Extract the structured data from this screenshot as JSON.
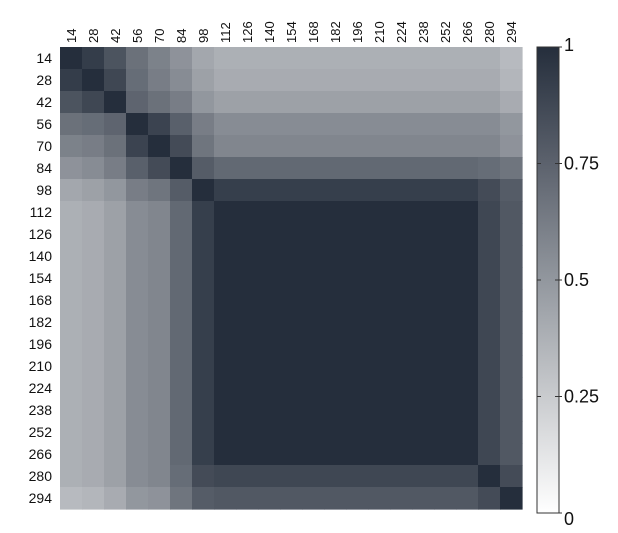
{
  "chart_data": {
    "type": "heatmap",
    "title": "",
    "xlabel": "",
    "ylabel": "",
    "x_labels": [
      "14",
      "28",
      "42",
      "56",
      "70",
      "84",
      "98",
      "112",
      "126",
      "140",
      "154",
      "168",
      "182",
      "196",
      "210",
      "224",
      "238",
      "252",
      "266",
      "280",
      "294"
    ],
    "y_labels": [
      "14",
      "28",
      "42",
      "56",
      "70",
      "84",
      "98",
      "112",
      "126",
      "140",
      "154",
      "168",
      "182",
      "196",
      "210",
      "224",
      "238",
      "252",
      "266",
      "280",
      "294"
    ],
    "block_group": [
      0,
      1,
      2,
      3,
      4,
      5,
      6,
      7,
      7,
      7,
      7,
      7,
      7,
      7,
      7,
      7,
      7,
      7,
      7,
      8,
      9
    ],
    "block_values": [
      [
        1.0,
        0.93,
        0.82,
        0.68,
        0.6,
        0.52,
        0.42,
        0.38,
        0.38,
        0.33
      ],
      [
        0.93,
        1.0,
        0.88,
        0.7,
        0.62,
        0.55,
        0.45,
        0.4,
        0.4,
        0.35
      ],
      [
        0.82,
        0.88,
        1.0,
        0.74,
        0.68,
        0.62,
        0.5,
        0.45,
        0.45,
        0.4
      ],
      [
        0.68,
        0.7,
        0.74,
        1.0,
        0.9,
        0.76,
        0.62,
        0.55,
        0.55,
        0.5
      ],
      [
        0.6,
        0.62,
        0.68,
        0.9,
        1.0,
        0.86,
        0.66,
        0.58,
        0.58,
        0.52
      ],
      [
        0.52,
        0.55,
        0.62,
        0.76,
        0.86,
        1.0,
        0.78,
        0.72,
        0.7,
        0.66
      ],
      [
        0.42,
        0.45,
        0.5,
        0.62,
        0.66,
        0.78,
        1.0,
        0.92,
        0.86,
        0.78
      ],
      [
        0.38,
        0.4,
        0.45,
        0.55,
        0.58,
        0.72,
        0.92,
        1.0,
        0.88,
        0.8
      ],
      [
        0.38,
        0.4,
        0.45,
        0.55,
        0.58,
        0.7,
        0.86,
        0.88,
        1.0,
        0.86
      ],
      [
        0.33,
        0.35,
        0.4,
        0.5,
        0.52,
        0.66,
        0.78,
        0.8,
        0.86,
        1.0
      ]
    ],
    "color_scale": {
      "min": 0,
      "max": 1,
      "low_color": "#ffffff",
      "high_color": "#252e3c",
      "ticks": [
        0,
        0.25,
        0.5,
        0.75,
        1
      ],
      "tick_labels": [
        "0",
        "0.25",
        "0.5",
        "0.75",
        "1"
      ]
    },
    "legend": "right",
    "grid": false
  }
}
